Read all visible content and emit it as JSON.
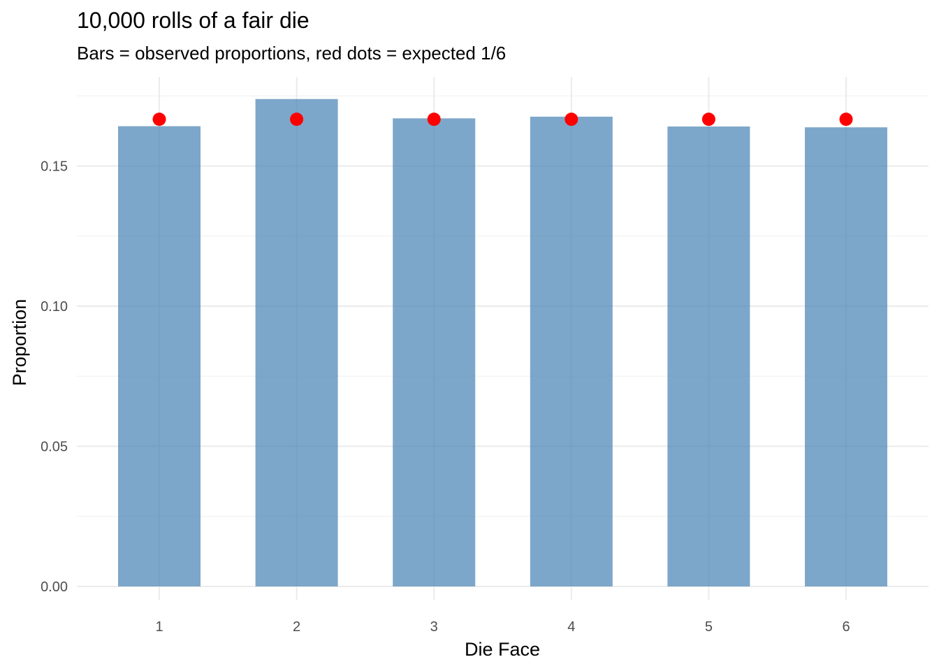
{
  "chart_data": {
    "type": "bar",
    "title": "10,000 rolls of a fair die",
    "subtitle": "Bars = observed proportions, red dots = expected 1/6",
    "xlabel": "Die Face",
    "ylabel": "Proportion",
    "categories": [
      "1",
      "2",
      "3",
      "4",
      "5",
      "6"
    ],
    "series": [
      {
        "name": "observed proportions",
        "values": [
          0.1642,
          0.1739,
          0.167,
          0.1676,
          0.1641,
          0.1638
        ],
        "color": "#4682b4"
      },
      {
        "name": "expected 1/6",
        "mark": "point",
        "values": [
          0.16667,
          0.16667,
          0.16667,
          0.16667,
          0.16667,
          0.16667
        ],
        "color": "#ff0000"
      }
    ],
    "ylim": [
      0,
      0.175
    ],
    "yticks": [
      0.0,
      0.05,
      0.1,
      0.15
    ],
    "ytick_labels": [
      "0.00",
      "0.05",
      "0.10",
      "0.15"
    ],
    "grid": true,
    "legend": "none"
  }
}
